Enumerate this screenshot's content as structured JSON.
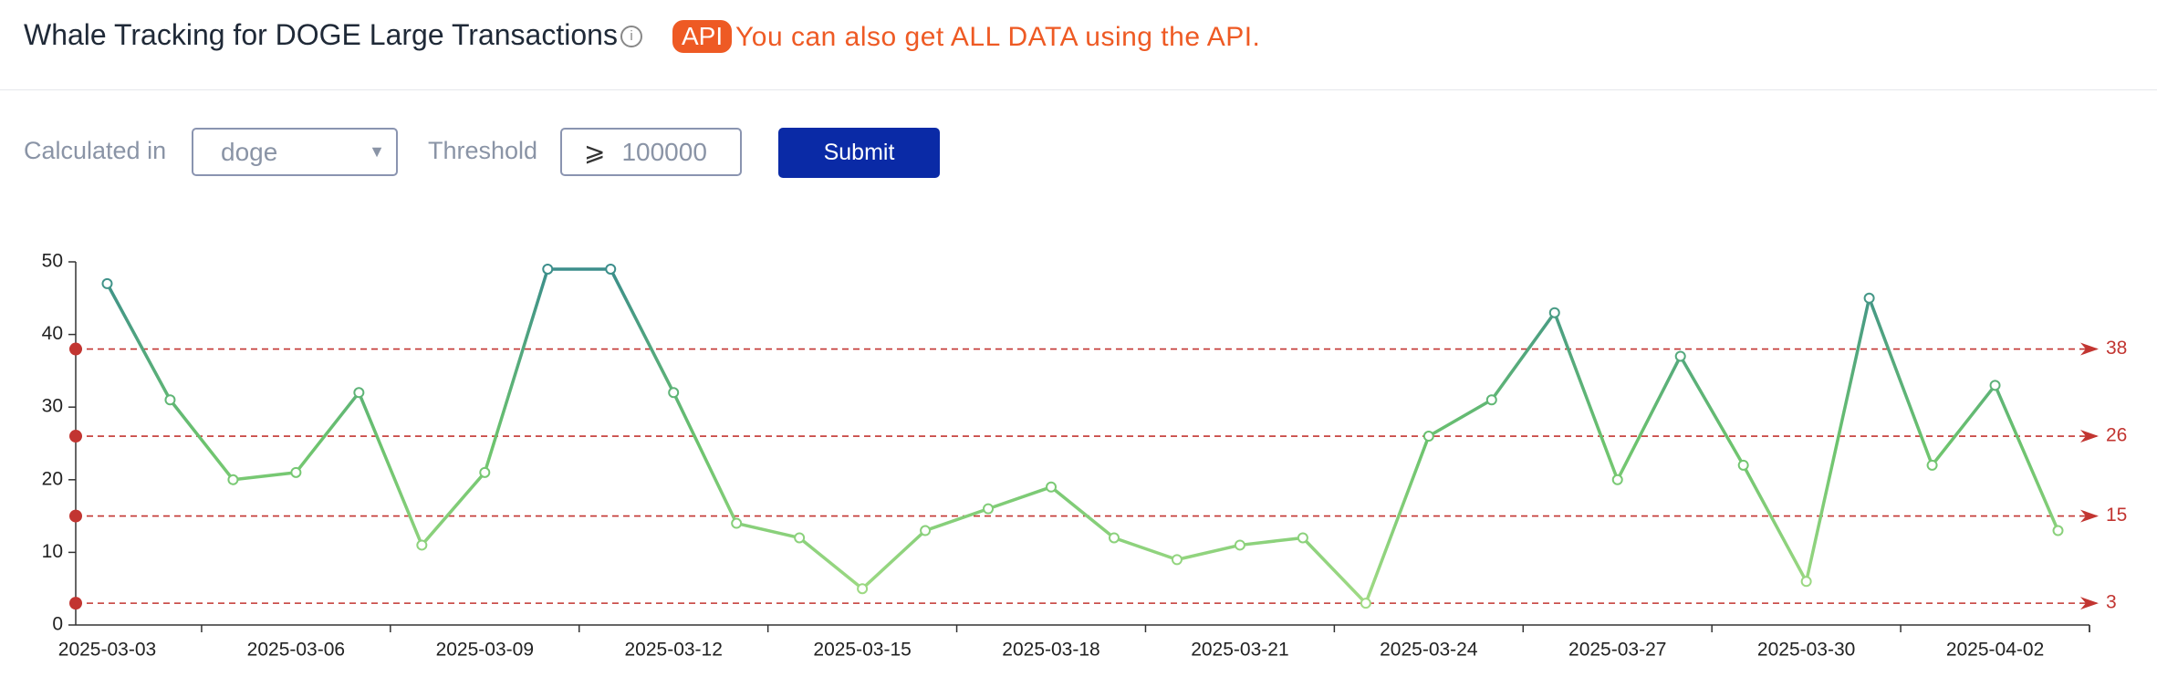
{
  "header": {
    "title": "Whale Tracking for DOGE Large Transactions",
    "api_badge": "API",
    "api_text": "You can also get ALL DATA using the API."
  },
  "form": {
    "calculated_label": "Calculated in",
    "unit": "doge",
    "threshold_label": "Threshold",
    "threshold_symbol": "⩾",
    "threshold_value": "100000",
    "submit": "Submit"
  },
  "chart_data": {
    "type": "line",
    "categories": [
      "2025-03-03",
      null,
      null,
      "2025-03-06",
      null,
      null,
      "2025-03-09",
      null,
      null,
      "2025-03-12",
      null,
      null,
      "2025-03-15",
      null,
      null,
      "2025-03-18",
      null,
      null,
      "2025-03-21",
      null,
      null,
      "2025-03-24",
      null,
      null,
      "2025-03-27",
      null,
      null,
      "2025-03-30",
      null,
      null,
      "2025-04-02",
      null
    ],
    "series": [
      {
        "values": [
          47,
          31,
          20,
          21,
          32,
          11,
          21,
          49,
          49,
          32,
          14,
          12,
          5,
          13,
          16,
          19,
          12,
          9,
          11,
          12,
          3,
          26,
          31,
          43,
          20,
          37,
          22,
          6,
          45,
          22,
          33,
          13
        ]
      }
    ],
    "gradient_colors": [
      "#a8de88",
      "#6cc36e",
      "#3a8c8c"
    ],
    "ylim": [
      0,
      50
    ],
    "yticks": [
      0,
      10,
      20,
      30,
      40,
      50
    ],
    "mark_lines": [
      38,
      26,
      15,
      3
    ],
    "mark_line_color": "#c23531"
  }
}
